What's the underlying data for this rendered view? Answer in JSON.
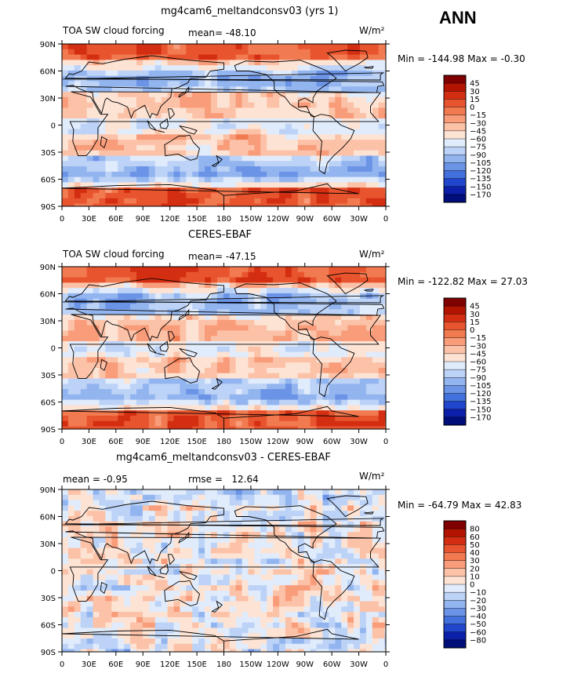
{
  "season": "ANN",
  "units": "W/m²",
  "panels": [
    {
      "title": "mg4cam6_meltandconsv03 (yrs 1)",
      "left_label": "TOA SW cloud forcing",
      "stat_label": "mean=",
      "stat_value": "-48.10",
      "units": "W/m²",
      "min_label": "Min =",
      "min_value": "-144.98",
      "max_label": "Max =",
      "max_value": "-0.30",
      "colorbar_labels": [
        "45",
        "30",
        "15",
        "0",
        "−15",
        "−30",
        "−45",
        "−60",
        "−75",
        "−90",
        "−105",
        "−120",
        "−135",
        "−150",
        "−170"
      ]
    },
    {
      "title": "CERES-EBAF",
      "left_label": "TOA SW cloud forcing",
      "stat_label": "mean=",
      "stat_value": "-47.15",
      "units": "W/m²",
      "min_label": "Min =",
      "min_value": "-122.82",
      "max_label": "Max =",
      "max_value": "27.03",
      "colorbar_labels": [
        "45",
        "30",
        "15",
        "0",
        "−15",
        "−30",
        "−45",
        "−60",
        "−75",
        "−90",
        "−105",
        "−120",
        "−135",
        "−150",
        "−170"
      ]
    },
    {
      "title": "mg4cam6_meltandconsv03 - CERES-EBAF",
      "left_label": "mean =   -0.95",
      "stat_label": "rmse =",
      "stat_value": "12.64",
      "units": "W/m²",
      "min_label": "Min =",
      "min_value": "-64.79",
      "max_label": "Max =",
      "max_value": "42.83",
      "colorbar_labels": [
        "80",
        "60",
        "50",
        "40",
        "30",
        "20",
        "10",
        "0",
        "−10",
        "−20",
        "−30",
        "−40",
        "−50",
        "−60",
        "−80"
      ]
    }
  ],
  "lat_ticks": [
    "90N",
    "60N",
    "30N",
    "0",
    "30S",
    "60S",
    "90S"
  ],
  "lon_ticks": [
    "0",
    "30E",
    "60E",
    "90E",
    "120E",
    "150E",
    "180",
    "150W",
    "120W",
    "90W",
    "60W",
    "30W",
    "0"
  ],
  "colors": {
    "field_palette": [
      "#7f0000",
      "#b31400",
      "#d42e12",
      "#e8542e",
      "#f27a50",
      "#f89c7a",
      "#fbc2a8",
      "#fde3d4",
      "#e0ebfb",
      "#bcd2f6",
      "#93b5ef",
      "#6b93e6",
      "#4270dc",
      "#1f46cc",
      "#0c1fa8",
      "#000e7a"
    ],
    "diff_palette": [
      "#7f0000",
      "#b31400",
      "#d42e12",
      "#e8542e",
      "#f27a50",
      "#f89c7a",
      "#fbc2a8",
      "#fde3d4",
      "#e0ebfb",
      "#bcd2f6",
      "#93b5ef",
      "#6b93e6",
      "#4270dc",
      "#1f46cc",
      "#0c1fa8",
      "#000e7a"
    ]
  }
}
